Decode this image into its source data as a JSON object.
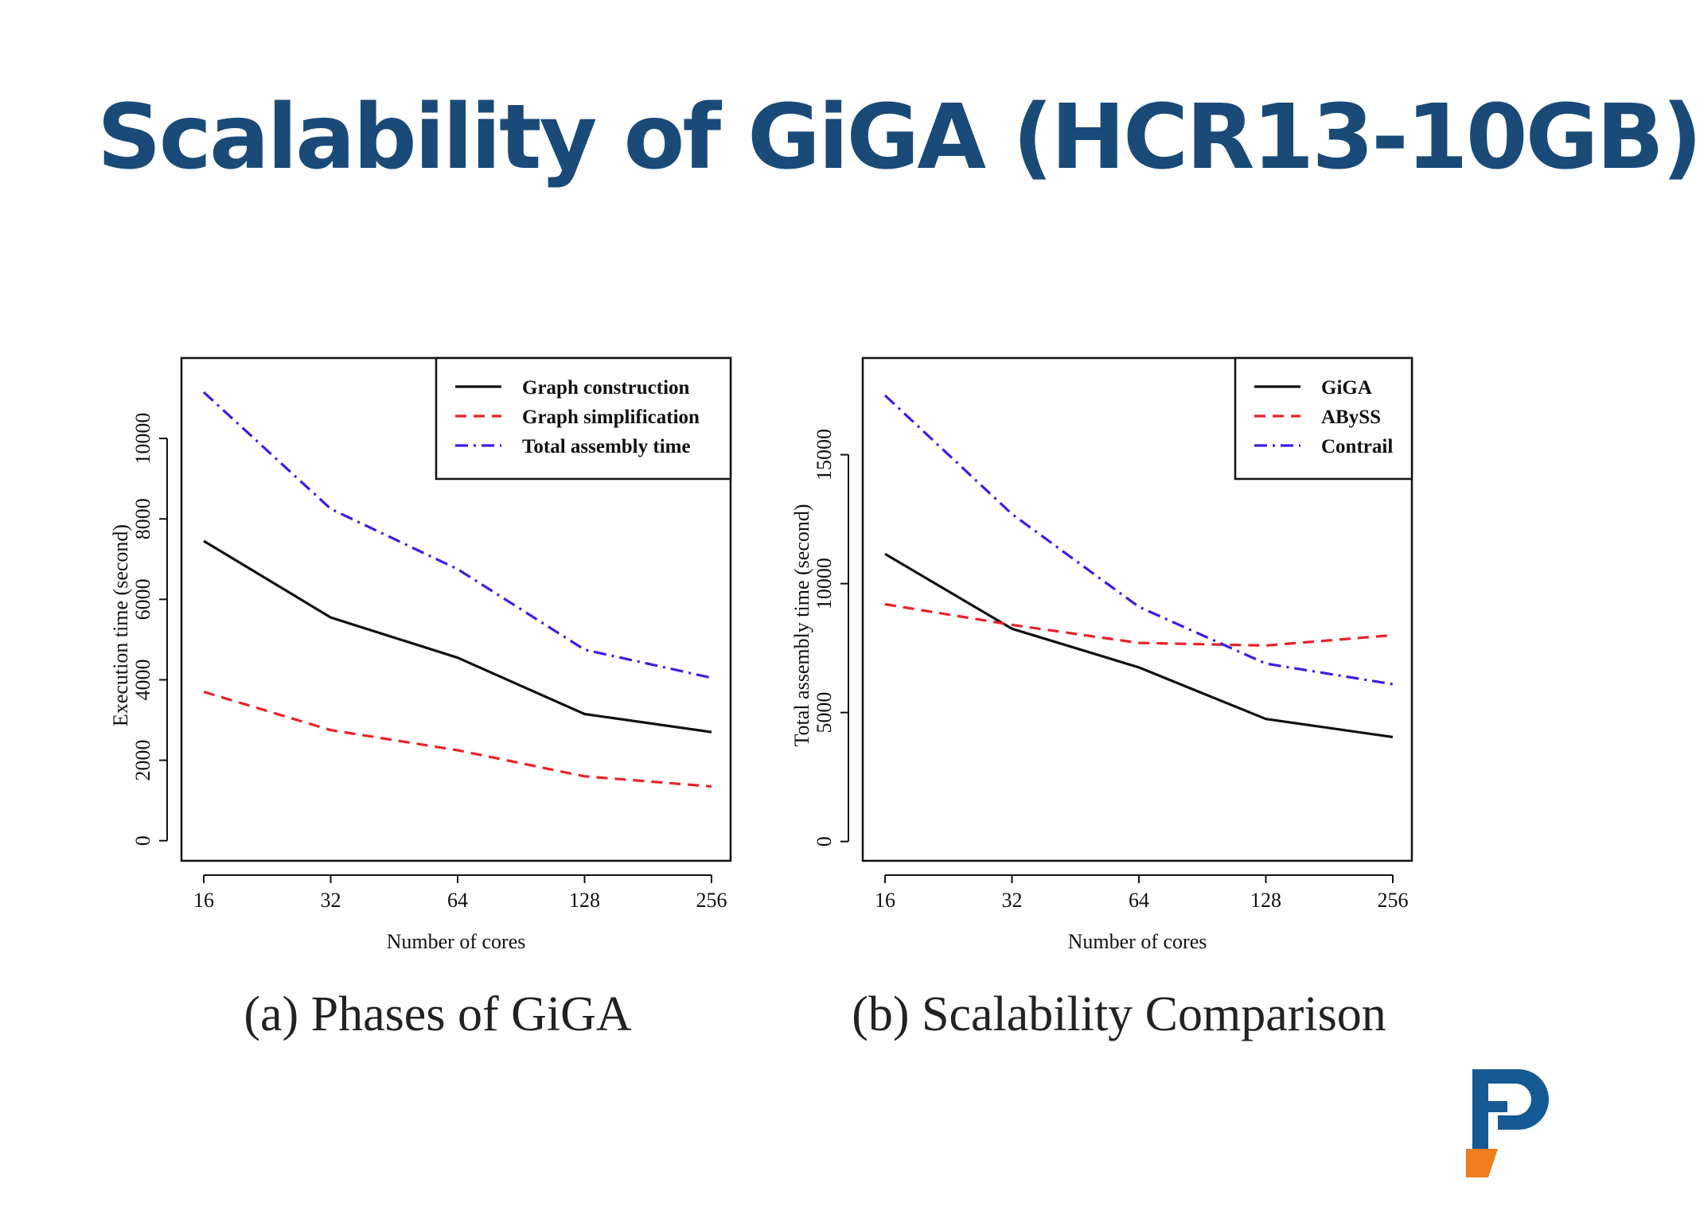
{
  "slide": {
    "title": "Scalability of GiGA (HCR13-10GB)",
    "title_color": "#1a4a78"
  },
  "chart_data": [
    {
      "type": "line",
      "caption": "(a) Phases of GiGA",
      "xlabel": "Number of cores",
      "ylabel": "Execution time (second)",
      "categories": [
        "16",
        "32",
        "64",
        "128",
        "256"
      ],
      "yticks": [
        0,
        2000,
        4000,
        6000,
        8000,
        10000
      ],
      "ylim": [
        -500,
        12000
      ],
      "legend_position": "top-right",
      "series": [
        {
          "name": "Graph construction",
          "values": [
            7450,
            5550,
            4550,
            3150,
            2700
          ],
          "color": "#111111",
          "dash": "solid"
        },
        {
          "name": "Graph simplification",
          "values": [
            3700,
            2750,
            2250,
            1600,
            1350
          ],
          "color": "#e8232a",
          "dash": "dashed"
        },
        {
          "name": "Total assembly time",
          "values": [
            11150,
            8250,
            6750,
            4750,
            4050
          ],
          "color": "#3a1fe0",
          "dash": "dashdot"
        }
      ]
    },
    {
      "type": "line",
      "caption": "(b) Scalability Comparison",
      "xlabel": "Number of cores",
      "ylabel": "Total assembly time (second)",
      "categories": [
        "16",
        "32",
        "64",
        "128",
        "256"
      ],
      "yticks": [
        0,
        5000,
        10000,
        15000
      ],
      "ylim": [
        -750,
        18750
      ],
      "legend_position": "top-right",
      "series": [
        {
          "name": "GiGA",
          "values": [
            11150,
            8250,
            6750,
            4750,
            4050
          ],
          "color": "#111111",
          "dash": "solid"
        },
        {
          "name": "ABySS",
          "values": [
            9200,
            8400,
            7700,
            7600,
            8000
          ],
          "color": "#e8232a",
          "dash": "dashed"
        },
        {
          "name": "Contrail",
          "values": [
            17300,
            12700,
            9100,
            6900,
            6100
          ],
          "color": "#3a1fe0",
          "dash": "dashdot"
        }
      ]
    }
  ],
  "logo": {
    "primary_color": "#155a94",
    "accent_color": "#f07d1e"
  }
}
